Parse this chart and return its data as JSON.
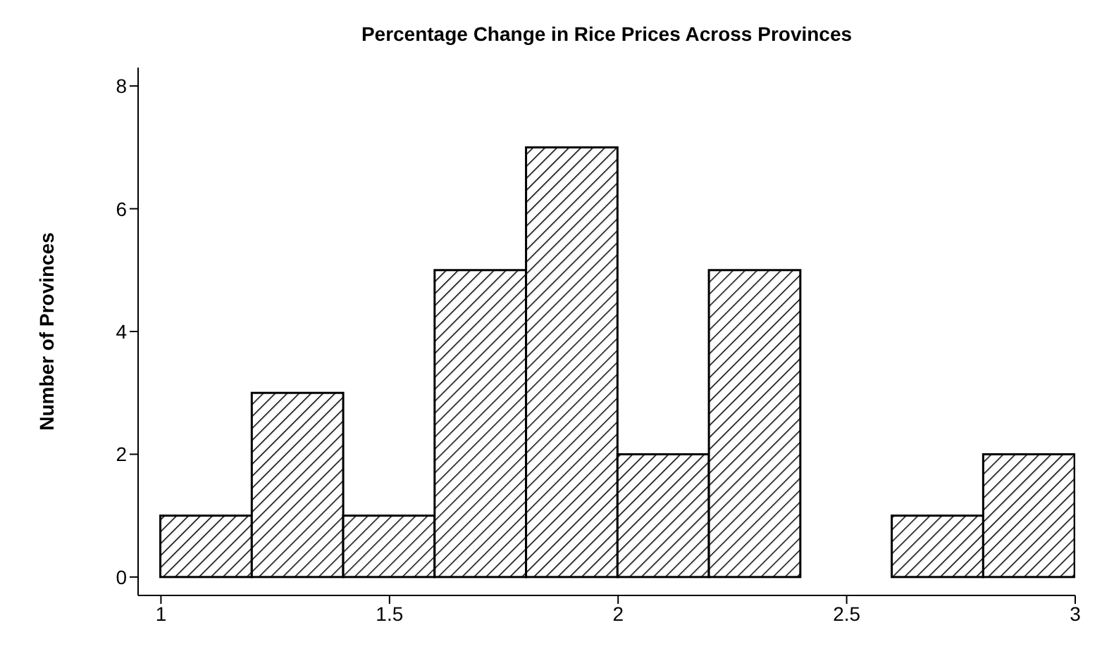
{
  "chart_data": {
    "type": "histogram",
    "title": "Percentage Change in Rice Prices Across Provinces",
    "ylabel": "Number of Provinces",
    "bins": [
      1.0,
      1.2,
      1.4,
      1.6,
      1.8,
      2.0,
      2.2,
      2.4,
      2.6,
      2.8,
      3.0
    ],
    "values": [
      1,
      3,
      1,
      5,
      7,
      2,
      5,
      0,
      1,
      2
    ],
    "color": "#000000",
    "xlim": [
      0.95,
      3.0
    ],
    "xticks": [
      1,
      1.5,
      2,
      2.5,
      3
    ],
    "ylim": [
      -0.3,
      8.3
    ],
    "yticks": [
      0,
      2,
      4,
      6,
      8
    ],
    "grid": false,
    "legend": false
  }
}
